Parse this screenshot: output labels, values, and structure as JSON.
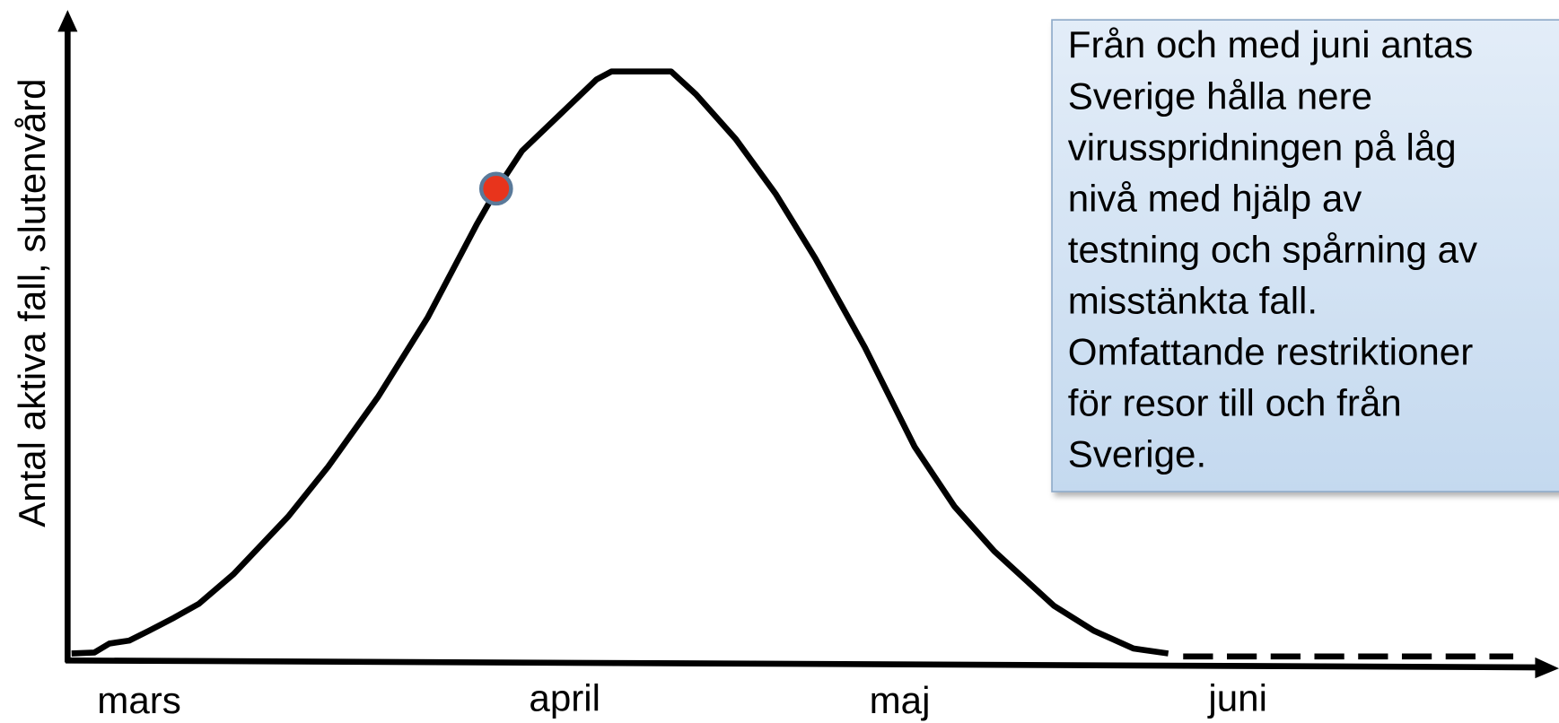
{
  "y_axis_label": "Antal aktiva fall, slutenvård",
  "x_labels": [
    "mars",
    "april",
    "maj",
    "juni"
  ],
  "note": {
    "lines": [
      "Från och med juni antas",
      "Sverige hålla nere",
      "virusspridningen på låg",
      "nivå med hjälp av",
      "testning och spårning av",
      "misstänkta fall.",
      "Omfattande restriktioner",
      "för resor till och från",
      "Sverige."
    ]
  }
}
